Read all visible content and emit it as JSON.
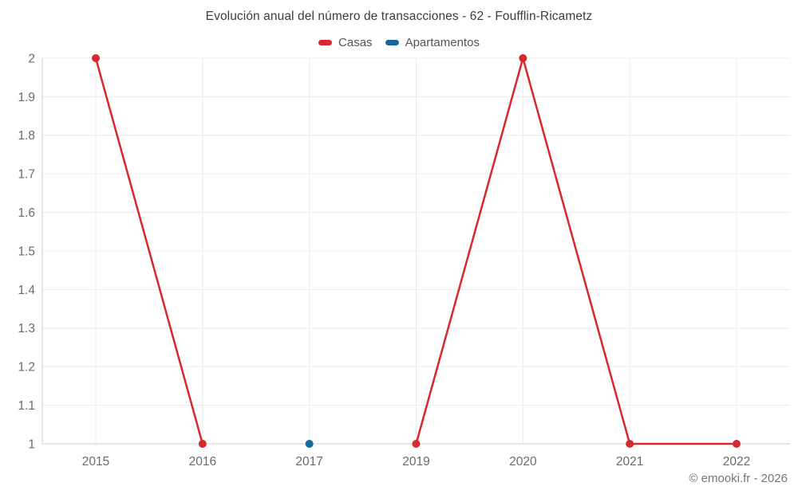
{
  "page": {
    "copyright": "© emooki.fr - 2026"
  },
  "chart_data": {
    "type": "line",
    "title": "Evolución anual del número de transacciones - 62 - Foufflin-Ricametz",
    "categories": [
      "2015",
      "2016",
      "2017",
      "2019",
      "2020",
      "2021",
      "2022"
    ],
    "series": [
      {
        "name": "Casas",
        "color": "#d7282f",
        "values": [
          2,
          1,
          null,
          1,
          2,
          1,
          1
        ]
      },
      {
        "name": "Apartamentos",
        "color": "#116a9f",
        "values": [
          null,
          null,
          1,
          null,
          null,
          null,
          null
        ]
      }
    ],
    "ylim": [
      1,
      2
    ],
    "y_tick_labels": [
      "2",
      "1.9",
      "1.8",
      "1.7",
      "1.6",
      "1.5",
      "1.4",
      "1.3",
      "1.2",
      "1.1",
      "1"
    ],
    "xlabel": "",
    "ylabel": "",
    "grid": true,
    "legend_position": "top",
    "colors": {
      "grid": "#ececec",
      "axis_line": "#cccccc",
      "axis_label": "#6b6b6b",
      "title_text": "#3c3c3c",
      "legend_text": "#555555",
      "credits_text": "#757575"
    }
  }
}
